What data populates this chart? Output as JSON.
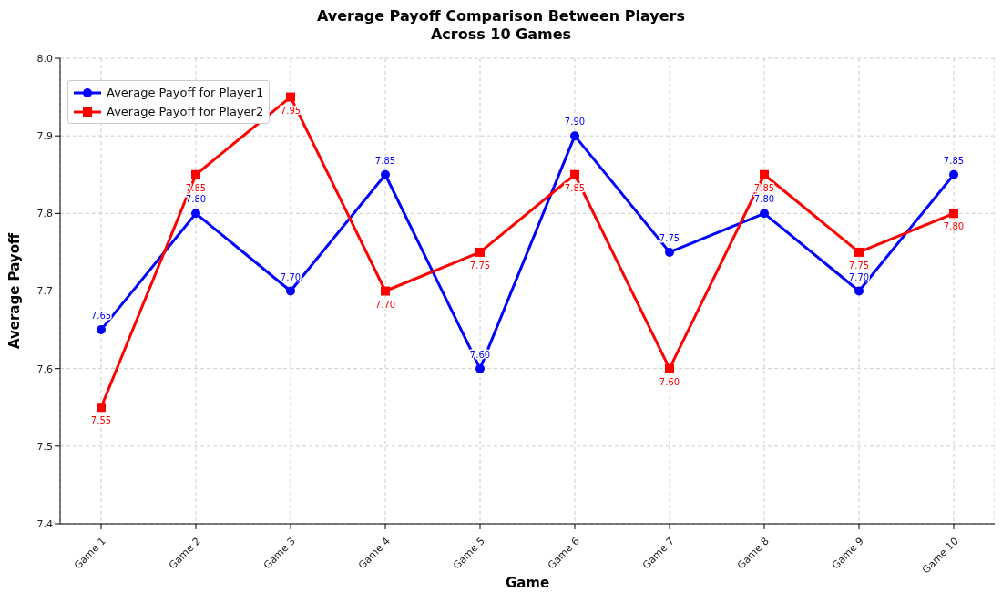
{
  "chart_data": {
    "type": "line",
    "title": "Average Payoff Comparison Between Players\nAcross 10 Games",
    "xlabel": "Game",
    "ylabel": "Average Payoff",
    "categories": [
      "Game 1",
      "Game 2",
      "Game 3",
      "Game 4",
      "Game 5",
      "Game 6",
      "Game 7",
      "Game 8",
      "Game 9",
      "Game 10"
    ],
    "series": [
      {
        "name": "Average Payoff for Player1",
        "color": "#0000ff",
        "marker": "circle",
        "values": [
          7.65,
          7.8,
          7.7,
          7.85,
          7.6,
          7.9,
          7.75,
          7.8,
          7.7,
          7.85
        ],
        "value_labels": [
          "7.65",
          "7.80",
          "7.70",
          "7.85",
          "7.60",
          "7.90",
          "7.75",
          "7.80",
          "7.70",
          "7.85"
        ]
      },
      {
        "name": "Average Payoff for Player2",
        "color": "#ff0000",
        "marker": "square",
        "values": [
          7.55,
          7.85,
          7.95,
          7.7,
          7.75,
          7.85,
          7.6,
          7.85,
          7.75,
          7.8
        ],
        "value_labels": [
          "7.55",
          "7.85",
          "7.95",
          "7.70",
          "7.75",
          "7.85",
          "7.60",
          "7.85",
          "7.75",
          "7.80"
        ]
      }
    ],
    "ylim": [
      7.4,
      8.0
    ],
    "yticks": [
      7.4,
      7.5,
      7.6,
      7.7,
      7.8,
      7.9,
      {
        "value": 8.0,
        "label": "8.0"
      }
    ],
    "grid": true,
    "legend": "top left",
    "line_style": "solid"
  }
}
